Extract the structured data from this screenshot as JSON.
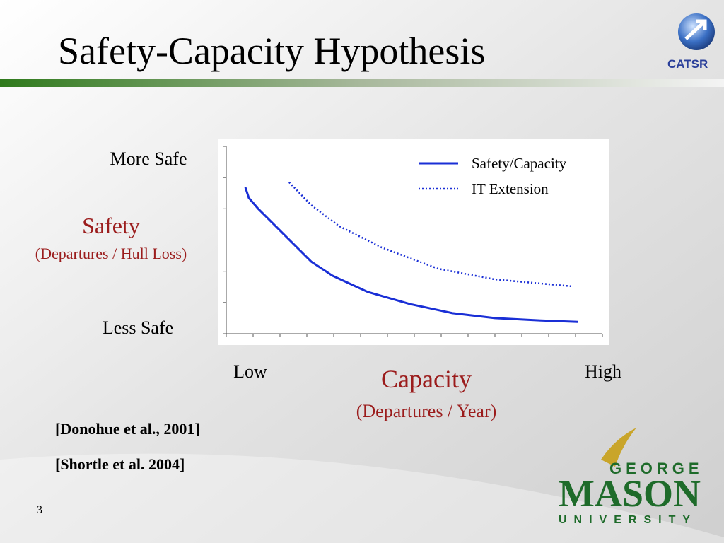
{
  "slide": {
    "title": "Safety-Capacity Hypothesis",
    "logo": "CATSR",
    "references": [
      "[Donohue et al., 2001]",
      "[Shortle et al. 2004]"
    ],
    "page_number": "3",
    "university": {
      "top": "GEORGE",
      "middle": "MASON",
      "bottom": "UNIVERSITY"
    }
  },
  "chart_data": {
    "type": "line",
    "ylabel": "Safety",
    "ylabel_note": "(Departures / Hull Loss)",
    "y_top_label": "More Safe",
    "y_bottom_label": "Less Safe",
    "xlabel": "Capacity",
    "xlabel_note": "(Departures / Year)",
    "x_low_label": "Low",
    "x_high_label": "High",
    "xlim": [
      0,
      14
    ],
    "ylim": [
      0,
      6
    ],
    "series": [
      {
        "name": "Safety/Capacity",
        "color": "#1a2fd6",
        "style": "solid",
        "x": [
          0.71,
          0.84,
          1.18,
          2.11,
          3.16,
          3.95,
          5.26,
          6.84,
          8.42,
          10,
          11.58,
          13.08
        ],
        "values": [
          4.69,
          4.35,
          4.01,
          3.21,
          2.31,
          1.86,
          1.34,
          0.95,
          0.66,
          0.5,
          0.43,
          0.38
        ]
      },
      {
        "name": "IT Extension",
        "color": "#1a2fd6",
        "style": "dotted",
        "x": [
          2.34,
          3.16,
          4.21,
          5.79,
          7.89,
          10,
          12.84
        ],
        "values": [
          4.85,
          4.12,
          3.44,
          2.76,
          2.08,
          1.74,
          1.52
        ]
      }
    ]
  }
}
